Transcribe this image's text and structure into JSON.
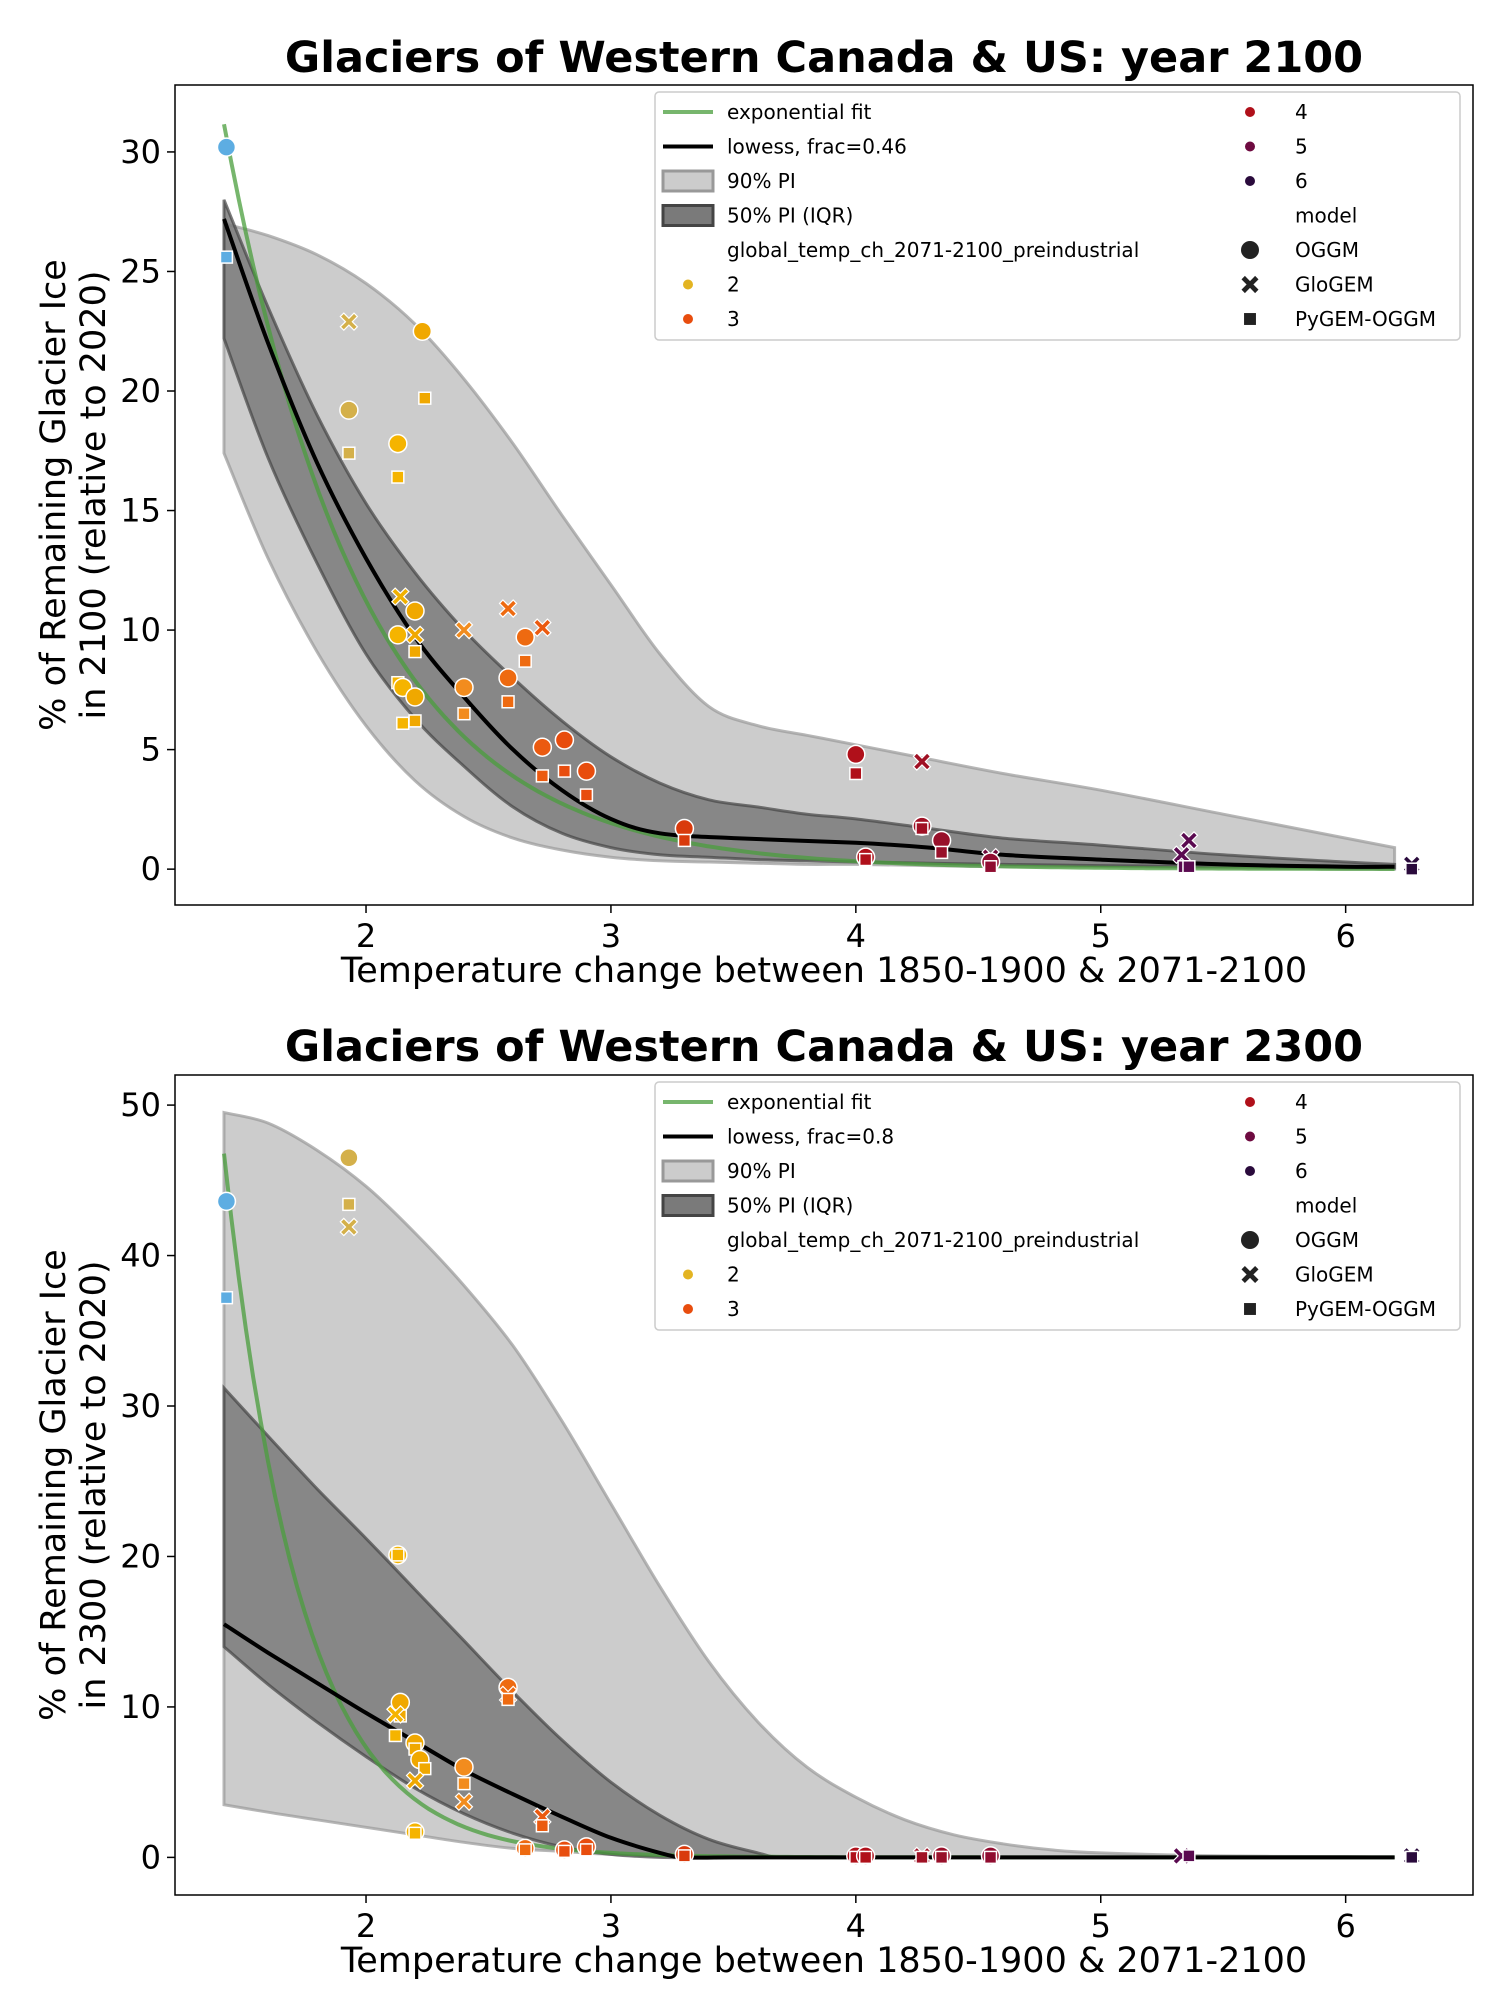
{
  "chart_data": [
    {
      "type": "scatter",
      "title": "Glaciers of Western Canada & US:  year 2100",
      "xlabel": "Temperature change between 1850-1900 & 2071-2100",
      "ylabel_lines": [
        "% of Remaining Glacier Ice",
        "in 2100 (relative to 2020)"
      ],
      "xlim": [
        1.22,
        6.52
      ],
      "ylim": [
        -1.5,
        32.8
      ],
      "xticks": [
        2,
        3,
        4,
        5,
        6
      ],
      "yticks": [
        0,
        5,
        10,
        15,
        20,
        25,
        30
      ],
      "grid": false,
      "legend_position": "top-right",
      "legend": {
        "exp_label": "exponential fit",
        "lowess_label": "lowess, frac=0.46",
        "pi90_label": "90% PI",
        "pi50_label": "50% PI (IQR)",
        "hue_title": "global_temp_ch_2071-2100_preindustrial",
        "hue_entries": [
          "2",
          "3",
          "4",
          "5",
          "6"
        ],
        "model_title": "model",
        "models": [
          "OGGM",
          "GloGEM",
          "PyGEM-OGGM"
        ]
      },
      "exp_fit": {
        "a": 380.4,
        "b": 1.762,
        "x_range": [
          1.42,
          6.2
        ]
      },
      "lowess": {
        "x": [
          1.42,
          1.6,
          1.8,
          2.0,
          2.2,
          2.4,
          2.6,
          2.8,
          3.0,
          3.2,
          3.5,
          4.0,
          4.3,
          4.6,
          5.0,
          5.5,
          6.0,
          6.2
        ],
        "y": [
          27.2,
          22.0,
          17.0,
          13.0,
          9.7,
          7.2,
          5.0,
          3.3,
          2.1,
          1.5,
          1.3,
          1.1,
          0.9,
          0.6,
          0.4,
          0.2,
          0.1,
          0.1
        ]
      },
      "pi90": {
        "x": [
          1.42,
          1.6,
          1.8,
          2.0,
          2.2,
          2.4,
          2.6,
          2.8,
          3.0,
          3.2,
          3.4,
          3.6,
          3.8,
          4.0,
          4.3,
          4.6,
          5.0,
          5.5,
          6.0,
          6.2
        ],
        "upper": [
          27.0,
          26.5,
          25.7,
          24.5,
          22.8,
          20.5,
          17.8,
          14.8,
          11.9,
          9.0,
          6.8,
          6.0,
          5.6,
          5.2,
          4.6,
          4.0,
          3.3,
          2.3,
          1.3,
          0.9
        ],
        "lower": [
          17.4,
          13.0,
          9.1,
          6.0,
          3.7,
          2.2,
          1.3,
          0.8,
          0.5,
          0.35,
          0.3,
          0.25,
          0.2,
          0.2,
          0.15,
          0.1,
          0.1,
          0.05,
          0.0,
          0.0
        ]
      },
      "pi50": {
        "x": [
          1.42,
          1.6,
          1.8,
          2.0,
          2.2,
          2.4,
          2.6,
          2.8,
          3.0,
          3.2,
          3.4,
          3.6,
          3.8,
          4.0,
          4.3,
          4.6,
          5.0,
          5.5,
          6.0,
          6.2
        ],
        "upper": [
          28.0,
          23.5,
          19.0,
          15.3,
          12.4,
          10.0,
          8.0,
          6.2,
          4.7,
          3.6,
          2.9,
          2.6,
          2.3,
          2.1,
          1.7,
          1.3,
          1.0,
          0.6,
          0.3,
          0.2
        ],
        "lower": [
          22.2,
          17.2,
          12.8,
          9.0,
          6.3,
          4.3,
          2.6,
          1.5,
          0.9,
          0.6,
          0.5,
          0.4,
          0.35,
          0.3,
          0.25,
          0.2,
          0.15,
          0.1,
          0.05,
          0.05
        ]
      },
      "points": [
        {
          "x": 1.43,
          "y": 30.2,
          "m": "o",
          "c": "#5DADE2"
        },
        {
          "x": 1.43,
          "y": 25.6,
          "m": "s",
          "c": "#5DADE2"
        },
        {
          "x": 1.93,
          "y": 22.9,
          "m": "x",
          "c": "#D4B04A"
        },
        {
          "x": 1.93,
          "y": 19.2,
          "m": "o",
          "c": "#D4B04A"
        },
        {
          "x": 1.93,
          "y": 17.4,
          "m": "s",
          "c": "#D4B04A"
        },
        {
          "x": 2.13,
          "y": 17.8,
          "m": "o",
          "c": "#F5B400"
        },
        {
          "x": 2.13,
          "y": 16.4,
          "m": "s",
          "c": "#F5B400"
        },
        {
          "x": 2.23,
          "y": 22.5,
          "m": "o",
          "c": "#F0A800"
        },
        {
          "x": 2.24,
          "y": 19.7,
          "m": "s",
          "c": "#F0A800"
        },
        {
          "x": 2.14,
          "y": 11.4,
          "m": "x",
          "c": "#F0B000"
        },
        {
          "x": 2.2,
          "y": 10.8,
          "m": "o",
          "c": "#F0A800"
        },
        {
          "x": 2.13,
          "y": 9.8,
          "m": "o",
          "c": "#F5B400"
        },
        {
          "x": 2.2,
          "y": 9.8,
          "m": "x",
          "c": "#F0A800"
        },
        {
          "x": 2.2,
          "y": 9.1,
          "m": "s",
          "c": "#F0A800"
        },
        {
          "x": 2.13,
          "y": 7.8,
          "m": "s",
          "c": "#F5B400"
        },
        {
          "x": 2.15,
          "y": 7.6,
          "m": "o",
          "c": "#F5B400"
        },
        {
          "x": 2.2,
          "y": 7.2,
          "m": "o",
          "c": "#F0A800"
        },
        {
          "x": 2.15,
          "y": 6.1,
          "m": "s",
          "c": "#F5B400"
        },
        {
          "x": 2.2,
          "y": 6.2,
          "m": "s",
          "c": "#F0A800"
        },
        {
          "x": 2.4,
          "y": 10.0,
          "m": "x",
          "c": "#F28C1E"
        },
        {
          "x": 2.4,
          "y": 7.6,
          "m": "o",
          "c": "#F28C1E"
        },
        {
          "x": 2.4,
          "y": 6.5,
          "m": "s",
          "c": "#F28C1E"
        },
        {
          "x": 2.58,
          "y": 10.9,
          "m": "x",
          "c": "#EE6A10"
        },
        {
          "x": 2.58,
          "y": 8.0,
          "m": "o",
          "c": "#EE6A10"
        },
        {
          "x": 2.58,
          "y": 7.0,
          "m": "s",
          "c": "#EE6A10"
        },
        {
          "x": 2.65,
          "y": 9.7,
          "m": "o",
          "c": "#EE6A10"
        },
        {
          "x": 2.65,
          "y": 8.7,
          "m": "s",
          "c": "#EE6A10"
        },
        {
          "x": 2.72,
          "y": 10.1,
          "m": "x",
          "c": "#EB5A10"
        },
        {
          "x": 2.72,
          "y": 5.1,
          "m": "o",
          "c": "#EB5A10"
        },
        {
          "x": 2.72,
          "y": 3.9,
          "m": "s",
          "c": "#EB5A10"
        },
        {
          "x": 2.81,
          "y": 5.4,
          "m": "o",
          "c": "#E84D0E"
        },
        {
          "x": 2.81,
          "y": 4.1,
          "m": "s",
          "c": "#E84D0E"
        },
        {
          "x": 2.9,
          "y": 4.1,
          "m": "o",
          "c": "#E84D0E"
        },
        {
          "x": 2.9,
          "y": 3.1,
          "m": "s",
          "c": "#E84D0E"
        },
        {
          "x": 3.3,
          "y": 1.7,
          "m": "o",
          "c": "#D93A0C"
        },
        {
          "x": 3.3,
          "y": 1.2,
          "m": "s",
          "c": "#D93A0C"
        },
        {
          "x": 4.0,
          "y": 4.8,
          "m": "o",
          "c": "#B0101A"
        },
        {
          "x": 4.0,
          "y": 4.0,
          "m": "s",
          "c": "#B0101A"
        },
        {
          "x": 4.04,
          "y": 0.5,
          "m": "o",
          "c": "#B0101A"
        },
        {
          "x": 4.04,
          "y": 0.4,
          "m": "s",
          "c": "#B0101A"
        },
        {
          "x": 4.27,
          "y": 4.5,
          "m": "x",
          "c": "#A01024"
        },
        {
          "x": 4.27,
          "y": 1.8,
          "m": "o",
          "c": "#A01024"
        },
        {
          "x": 4.27,
          "y": 1.7,
          "m": "s",
          "c": "#A01024"
        },
        {
          "x": 4.35,
          "y": 1.2,
          "m": "o",
          "c": "#98102A"
        },
        {
          "x": 4.35,
          "y": 0.7,
          "m": "s",
          "c": "#98102A"
        },
        {
          "x": 4.55,
          "y": 0.5,
          "m": "x",
          "c": "#6E0A3A"
        },
        {
          "x": 4.55,
          "y": 0.3,
          "m": "o",
          "c": "#900C30"
        },
        {
          "x": 4.55,
          "y": 0.1,
          "m": "s",
          "c": "#900C30"
        },
        {
          "x": 5.33,
          "y": 0.6,
          "m": "x",
          "c": "#5A0A50"
        },
        {
          "x": 5.36,
          "y": 1.2,
          "m": "x",
          "c": "#5A0A50"
        },
        {
          "x": 5.34,
          "y": 0.1,
          "m": "s",
          "c": "#5A0A50"
        },
        {
          "x": 5.36,
          "y": 0.1,
          "m": "s",
          "c": "#5A0A50"
        },
        {
          "x": 6.27,
          "y": 0.2,
          "m": "x",
          "c": "#2A0A3C"
        },
        {
          "x": 6.27,
          "y": 0.0,
          "m": "s",
          "c": "#2A0A3C"
        }
      ]
    },
    {
      "type": "scatter",
      "title": "Glaciers of Western Canada & US:  year 2300",
      "xlabel": "Temperature change between 1850-1900 & 2071-2100",
      "ylabel_lines": [
        "% of Remaining Glacier Ice",
        "in 2300 (relative to 2020)"
      ],
      "xlim": [
        1.22,
        6.52
      ],
      "ylim": [
        -2.5,
        52.0
      ],
      "xticks": [
        2,
        3,
        4,
        5,
        6
      ],
      "yticks": [
        0,
        10,
        20,
        30,
        40,
        50
      ],
      "grid": false,
      "legend_position": "top-right",
      "legend": {
        "exp_label": "exponential fit",
        "lowess_label": "lowess, frac=0.8",
        "pi90_label": "90% PI",
        "pi50_label": "50% PI (IQR)",
        "hue_title": "global_temp_ch_2071-2100_preindustrial",
        "hue_entries": [
          "2",
          "3",
          "4",
          "5",
          "6"
        ],
        "model_title": "model",
        "models": [
          "OGGM",
          "GloGEM",
          "PyGEM-OGGM"
        ]
      },
      "exp_fit": {
        "a": 4400,
        "b": 3.2,
        "x_range": [
          1.42,
          6.2
        ]
      },
      "lowess": {
        "x": [
          1.42,
          1.6,
          1.8,
          2.0,
          2.2,
          2.4,
          2.6,
          2.8,
          3.0,
          3.2,
          3.3,
          3.5,
          4.0,
          5.0,
          6.0,
          6.2
        ],
        "y": [
          15.5,
          13.6,
          11.6,
          9.6,
          7.7,
          5.8,
          4.2,
          2.7,
          1.3,
          0.3,
          0.0,
          0.0,
          0.0,
          0.0,
          0.0,
          0.0
        ]
      },
      "pi90": {
        "x": [
          1.42,
          1.6,
          1.8,
          2.0,
          2.2,
          2.4,
          2.6,
          2.8,
          3.0,
          3.2,
          3.4,
          3.6,
          3.8,
          4.0,
          4.2,
          4.4,
          4.6,
          4.8,
          5.0,
          5.5,
          6.0,
          6.2
        ],
        "upper": [
          49.5,
          48.8,
          47.0,
          44.6,
          41.5,
          38.0,
          34.0,
          29.0,
          23.5,
          18.0,
          13.0,
          9.0,
          6.0,
          4.0,
          2.5,
          1.5,
          0.9,
          0.5,
          0.3,
          0.1,
          0.05,
          0.0
        ],
        "lower": [
          3.5,
          3.0,
          2.5,
          2.0,
          1.5,
          1.0,
          0.6,
          0.4,
          0.2,
          0.1,
          0.05,
          0.0,
          0.0,
          0.0,
          0.0,
          0.0,
          0.0,
          0.0,
          0.0,
          0.0,
          0.0,
          0.0
        ]
      },
      "pi50": {
        "x": [
          1.42,
          1.6,
          1.8,
          2.0,
          2.2,
          2.4,
          2.6,
          2.8,
          3.0,
          3.2,
          3.4,
          3.6,
          3.7,
          4.0,
          5.0,
          6.0,
          6.2
        ],
        "upper": [
          31.2,
          28.0,
          24.5,
          21.2,
          17.8,
          14.4,
          11.0,
          7.8,
          5.0,
          2.8,
          1.2,
          0.3,
          0.0,
          0.0,
          0.0,
          0.0,
          0.0
        ],
        "lower": [
          14.0,
          11.5,
          9.0,
          6.7,
          4.6,
          2.9,
          1.6,
          0.7,
          0.2,
          0.0,
          0.0,
          0.0,
          0.0,
          0.0,
          0.0,
          0.0,
          0.0
        ]
      },
      "points": [
        {
          "x": 1.43,
          "y": 43.6,
          "m": "o",
          "c": "#5DADE2"
        },
        {
          "x": 1.43,
          "y": 37.2,
          "m": "s",
          "c": "#5DADE2"
        },
        {
          "x": 1.93,
          "y": 46.5,
          "m": "o",
          "c": "#D4B04A"
        },
        {
          "x": 1.93,
          "y": 43.4,
          "m": "s",
          "c": "#D4B04A"
        },
        {
          "x": 1.93,
          "y": 41.9,
          "m": "x",
          "c": "#D4B04A"
        },
        {
          "x": 2.13,
          "y": 20.1,
          "m": "o",
          "c": "#F5B400"
        },
        {
          "x": 2.13,
          "y": 20.1,
          "m": "s",
          "c": "#F5B400"
        },
        {
          "x": 2.14,
          "y": 10.3,
          "m": "o",
          "c": "#F0A800"
        },
        {
          "x": 2.14,
          "y": 9.4,
          "m": "s",
          "c": "#F0A800"
        },
        {
          "x": 2.12,
          "y": 9.5,
          "m": "x",
          "c": "#F5B400"
        },
        {
          "x": 2.12,
          "y": 8.1,
          "m": "s",
          "c": "#F5B400"
        },
        {
          "x": 2.2,
          "y": 7.6,
          "m": "o",
          "c": "#F0A800"
        },
        {
          "x": 2.2,
          "y": 7.2,
          "m": "s",
          "c": "#F0A800"
        },
        {
          "x": 2.22,
          "y": 6.5,
          "m": "o",
          "c": "#F0A800"
        },
        {
          "x": 2.24,
          "y": 5.9,
          "m": "s",
          "c": "#F0A800"
        },
        {
          "x": 2.2,
          "y": 5.1,
          "m": "x",
          "c": "#F0A800"
        },
        {
          "x": 2.2,
          "y": 1.7,
          "m": "o",
          "c": "#F5B400"
        },
        {
          "x": 2.2,
          "y": 1.6,
          "m": "s",
          "c": "#F5B400"
        },
        {
          "x": 2.4,
          "y": 6.0,
          "m": "o",
          "c": "#F28C1E"
        },
        {
          "x": 2.4,
          "y": 4.9,
          "m": "s",
          "c": "#F28C1E"
        },
        {
          "x": 2.4,
          "y": 3.7,
          "m": "x",
          "c": "#F28C1E"
        },
        {
          "x": 2.58,
          "y": 11.3,
          "m": "o",
          "c": "#EE6A10"
        },
        {
          "x": 2.58,
          "y": 10.8,
          "m": "x",
          "c": "#EE6A10"
        },
        {
          "x": 2.58,
          "y": 10.5,
          "m": "s",
          "c": "#EE6A10"
        },
        {
          "x": 2.72,
          "y": 2.7,
          "m": "x",
          "c": "#EB5A10"
        },
        {
          "x": 2.72,
          "y": 2.1,
          "m": "s",
          "c": "#EB5A10"
        },
        {
          "x": 2.65,
          "y": 0.6,
          "m": "o",
          "c": "#EE6A10"
        },
        {
          "x": 2.65,
          "y": 0.5,
          "m": "s",
          "c": "#EE6A10"
        },
        {
          "x": 2.81,
          "y": 0.5,
          "m": "o",
          "c": "#E84D0E"
        },
        {
          "x": 2.81,
          "y": 0.4,
          "m": "s",
          "c": "#E84D0E"
        },
        {
          "x": 2.9,
          "y": 0.7,
          "m": "o",
          "c": "#E84D0E"
        },
        {
          "x": 2.9,
          "y": 0.5,
          "m": "s",
          "c": "#E84D0E"
        },
        {
          "x": 3.3,
          "y": 0.2,
          "m": "o",
          "c": "#D93A0C"
        },
        {
          "x": 3.3,
          "y": 0.1,
          "m": "s",
          "c": "#D93A0C"
        },
        {
          "x": 4.0,
          "y": 0.1,
          "m": "o",
          "c": "#B0101A"
        },
        {
          "x": 4.0,
          "y": 0.0,
          "m": "s",
          "c": "#B0101A"
        },
        {
          "x": 4.04,
          "y": 0.1,
          "m": "o",
          "c": "#B0101A"
        },
        {
          "x": 4.04,
          "y": 0.0,
          "m": "s",
          "c": "#B0101A"
        },
        {
          "x": 4.27,
          "y": 0.1,
          "m": "x",
          "c": "#A01024"
        },
        {
          "x": 4.27,
          "y": 0.0,
          "m": "s",
          "c": "#A01024"
        },
        {
          "x": 4.35,
          "y": 0.1,
          "m": "o",
          "c": "#98102A"
        },
        {
          "x": 4.35,
          "y": 0.0,
          "m": "s",
          "c": "#98102A"
        },
        {
          "x": 4.55,
          "y": 0.1,
          "m": "o",
          "c": "#900C30"
        },
        {
          "x": 4.55,
          "y": 0.0,
          "m": "s",
          "c": "#900C30"
        },
        {
          "x": 5.33,
          "y": 0.1,
          "m": "x",
          "c": "#5A0A50"
        },
        {
          "x": 5.36,
          "y": 0.1,
          "m": "s",
          "c": "#5A0A50"
        },
        {
          "x": 6.27,
          "y": 0.1,
          "m": "x",
          "c": "#2A0A3C"
        },
        {
          "x": 6.27,
          "y": 0.0,
          "m": "s",
          "c": "#2A0A3C"
        }
      ]
    }
  ],
  "colors": {
    "exp_fit": "#4a9e3c",
    "lowess": "#000000",
    "pi90_fill": "#cccccc",
    "pi90_edge": "#999999",
    "pi50_fill": "#7a7a7a",
    "pi50_edge": "#444444",
    "hue_2": "#E3B422",
    "hue_3": "#E84D0E",
    "hue_4": "#B0101A",
    "hue_5": "#6E0A40",
    "hue_6": "#2A0A3C",
    "model_marker": "#222222"
  }
}
